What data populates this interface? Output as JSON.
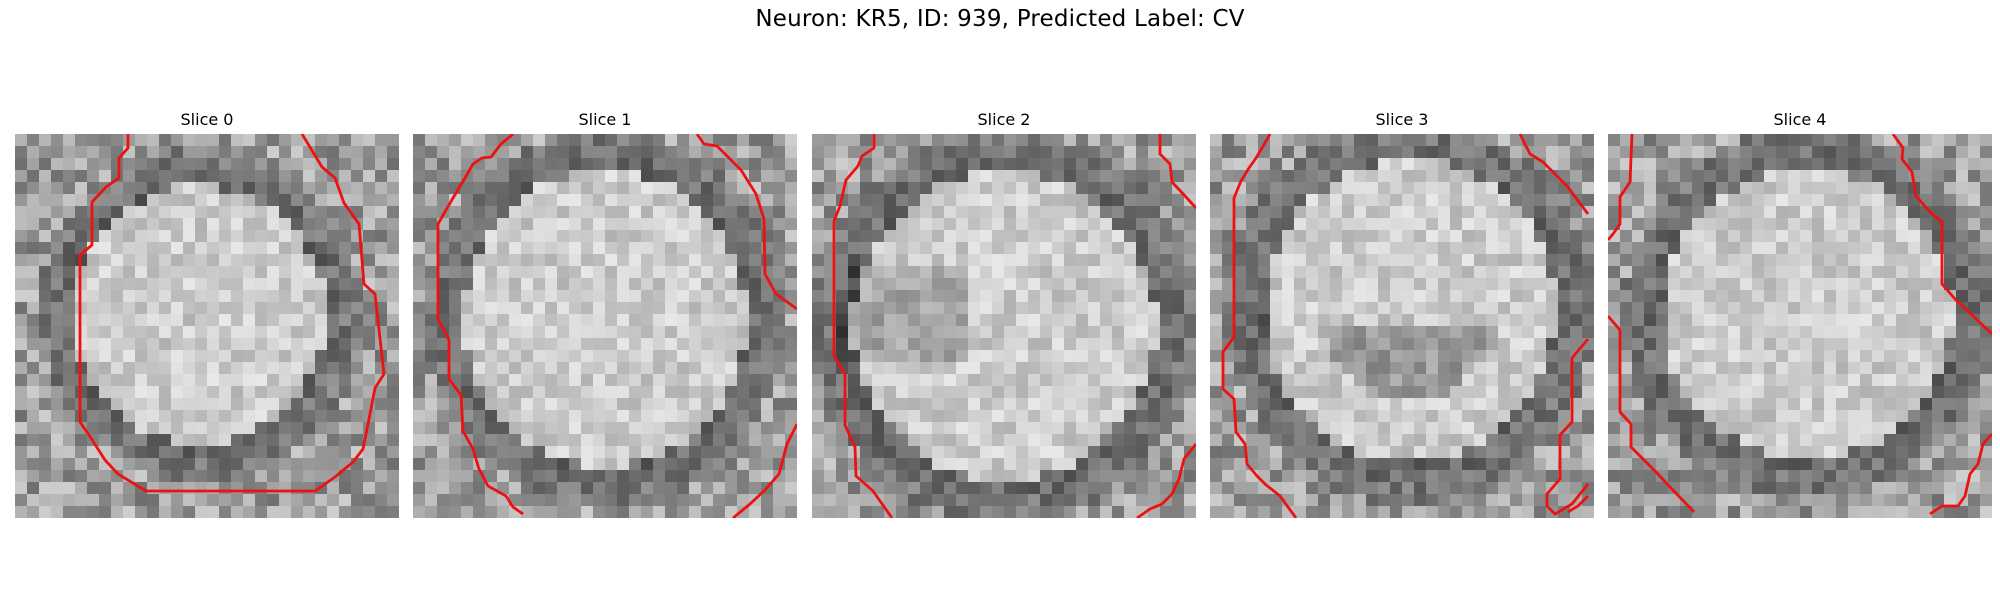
{
  "figure": {
    "title": "Neuron: KR5, ID: 939, Predicted Label: CV"
  },
  "panels": [
    {
      "title": "Slice 0"
    },
    {
      "title": "Slice 1"
    },
    {
      "title": "Slice 2"
    },
    {
      "title": "Slice 3"
    },
    {
      "title": "Slice 4"
    }
  ],
  "colors": {
    "contour": "#ee1111",
    "background": "#ffffff"
  }
}
